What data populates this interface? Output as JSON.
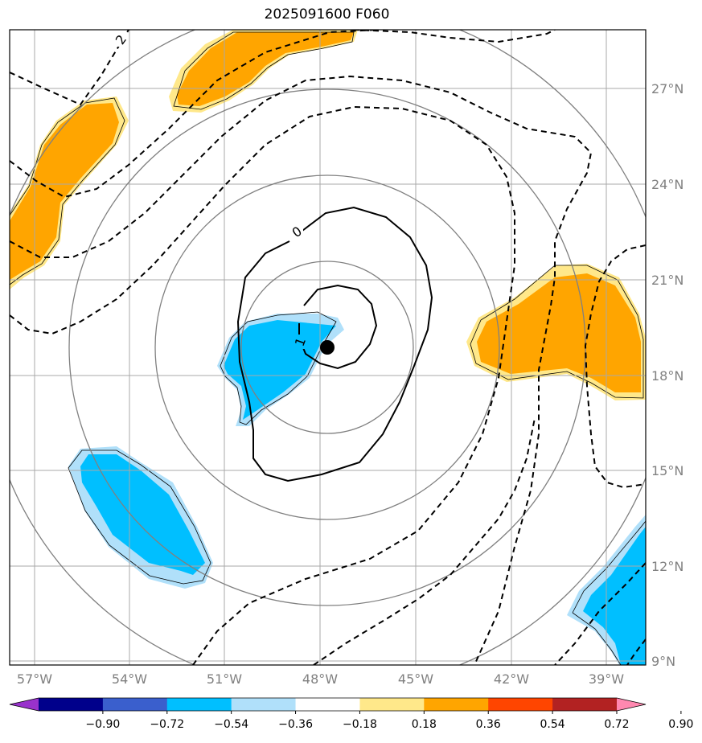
{
  "title": "2025091600 F060",
  "lon_labels": [
    "57°W",
    "54°W",
    "51°W",
    "48°W",
    "45°W",
    "42°W",
    "39°W"
  ],
  "lat_labels": [
    "27°N",
    "24°N",
    "21°N",
    "18°N",
    "15°N",
    "12°N",
    "9°N"
  ],
  "contour_labels": [
    "2",
    "0",
    "1"
  ],
  "colorbar": {
    "ticks": [
      "−0.90",
      "−0.72",
      "−0.54",
      "−0.36",
      "−0.18",
      "0.18",
      "0.36",
      "0.54",
      "0.72",
      "0.90"
    ],
    "colors": [
      "#9932cc",
      "#00008b",
      "#3a5fcd",
      "#00bfff",
      "#b0e0fa",
      "#ffffff",
      "#ffe88a",
      "#ffa500",
      "#ff4500",
      "#b22222",
      "#ff88b0"
    ]
  },
  "colors": {
    "positive_fill": "#ffa500",
    "positive_edge": "#ffe88a",
    "negative_fill": "#00bfff",
    "negative_edge": "#b0e0fa",
    "grid": "#a9a9a9",
    "range_rings": "#808080",
    "contour": "#000000"
  },
  "center_marker": "black-dot"
}
